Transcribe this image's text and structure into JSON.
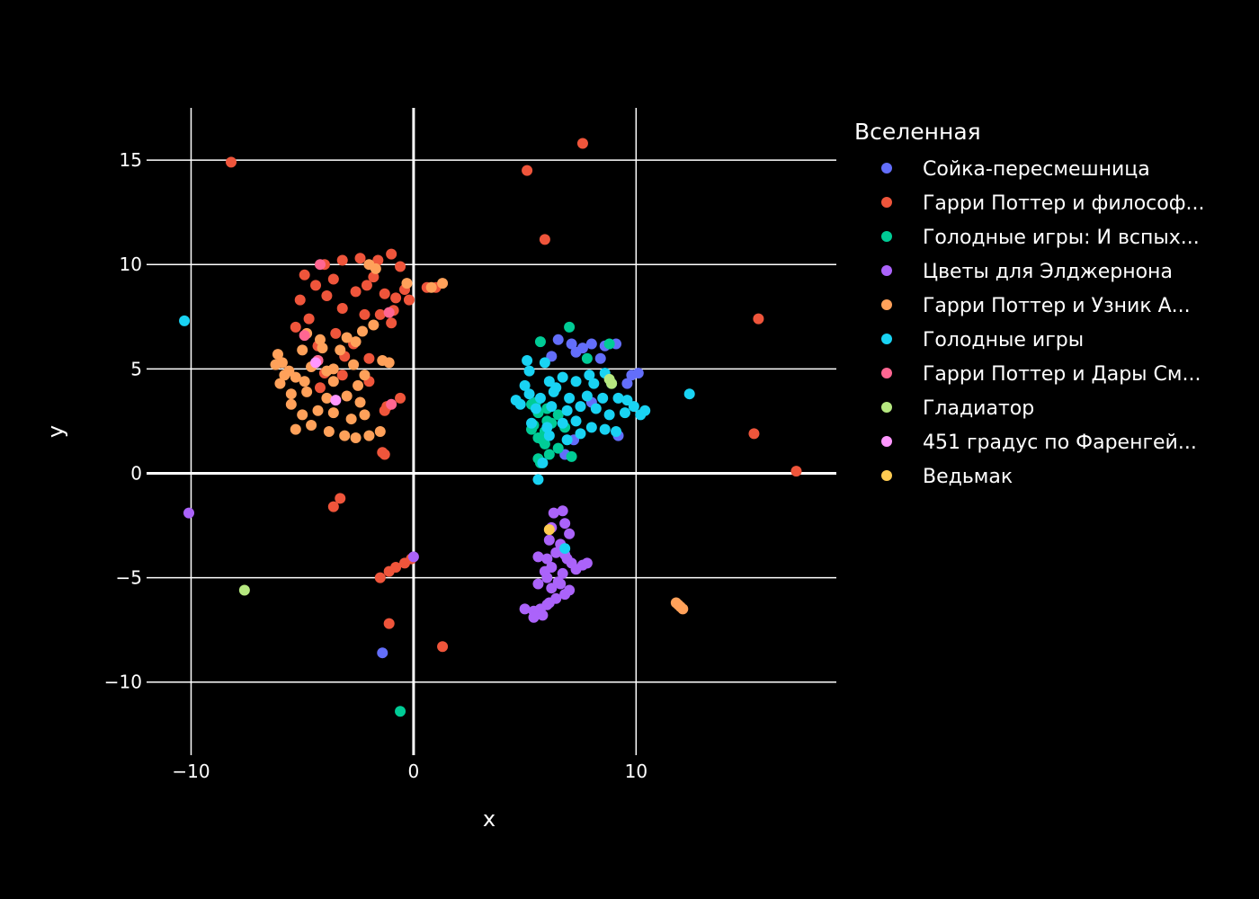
{
  "chart_data": {
    "type": "scatter",
    "title": "",
    "xlabel": "x",
    "ylabel": "y",
    "xlim": [
      -12,
      19
    ],
    "ylim": [
      -13.5,
      17.5
    ],
    "xticks": [
      -10,
      0,
      10
    ],
    "yticks": [
      -10,
      -5,
      0,
      5,
      10,
      15
    ],
    "xtick_labels": [
      "−10",
      "0",
      "10"
    ],
    "ytick_labels": [
      "−10",
      "−5",
      "0",
      "5",
      "10",
      "15"
    ],
    "grid": true,
    "background": "#000000",
    "grid_color": "#ffffff",
    "legend": {
      "title": "Вселенная",
      "placement": "right"
    },
    "series": [
      {
        "name": "Сойка-пересмешница",
        "color": "#636efa",
        "points": [
          [
            -1.4,
            -8.6
          ],
          [
            6.5,
            6.4
          ],
          [
            7.1,
            6.2
          ],
          [
            7.6,
            6.0
          ],
          [
            8.0,
            6.2
          ],
          [
            8.6,
            6.1
          ],
          [
            9.1,
            6.2
          ],
          [
            6.2,
            5.6
          ],
          [
            7.3,
            5.8
          ],
          [
            8.4,
            5.5
          ],
          [
            9.8,
            4.7
          ],
          [
            10.1,
            4.8
          ],
          [
            9.6,
            4.3
          ],
          [
            8.0,
            3.4
          ],
          [
            6.8,
            0.9
          ],
          [
            7.2,
            1.6
          ],
          [
            9.2,
            1.8
          ]
        ]
      },
      {
        "name": "Гарри Поттер и философ...",
        "color": "#ef553b",
        "points": [
          [
            -8.2,
            14.9
          ],
          [
            5.1,
            14.5
          ],
          [
            7.6,
            15.8
          ],
          [
            5.9,
            11.2
          ],
          [
            15.5,
            7.4
          ],
          [
            15.3,
            1.9
          ],
          [
            17.2,
            0.1
          ],
          [
            -4.0,
            10.0
          ],
          [
            -3.2,
            10.2
          ],
          [
            -2.4,
            10.3
          ],
          [
            -1.6,
            10.2
          ],
          [
            -1.0,
            10.5
          ],
          [
            -0.6,
            9.9
          ],
          [
            -4.9,
            9.5
          ],
          [
            -4.4,
            9.0
          ],
          [
            -5.1,
            8.3
          ],
          [
            -3.6,
            9.3
          ],
          [
            -2.1,
            9.0
          ],
          [
            -1.3,
            8.6
          ],
          [
            -0.8,
            8.4
          ],
          [
            -0.2,
            8.3
          ],
          [
            0.6,
            8.9
          ],
          [
            1.0,
            8.9
          ],
          [
            -3.2,
            7.9
          ],
          [
            -2.2,
            7.6
          ],
          [
            -1.5,
            7.6
          ],
          [
            -0.9,
            7.8
          ],
          [
            -1.0,
            7.2
          ],
          [
            -3.5,
            6.7
          ],
          [
            -2.7,
            6.2
          ],
          [
            -4.3,
            6.1
          ],
          [
            -3.1,
            5.6
          ],
          [
            -2.0,
            5.5
          ],
          [
            -4.0,
            4.8
          ],
          [
            -3.2,
            4.7
          ],
          [
            -2.0,
            4.4
          ],
          [
            -4.2,
            4.1
          ],
          [
            -1.2,
            3.2
          ],
          [
            -1.3,
            3.0
          ],
          [
            -0.6,
            3.6
          ],
          [
            -1.4,
            1.0
          ],
          [
            -1.3,
            0.9
          ],
          [
            -3.3,
            -1.2
          ],
          [
            -3.6,
            -1.6
          ],
          [
            -1.5,
            -5.0
          ],
          [
            -1.1,
            -4.7
          ],
          [
            -0.8,
            -4.5
          ],
          [
            -0.4,
            -4.3
          ],
          [
            -0.1,
            -4.1
          ],
          [
            -1.1,
            -7.2
          ],
          [
            1.3,
            -8.3
          ],
          [
            -5.3,
            7.0
          ],
          [
            -4.7,
            7.4
          ],
          [
            -3.9,
            8.5
          ],
          [
            -2.6,
            8.7
          ],
          [
            -1.8,
            9.4
          ],
          [
            -0.4,
            8.8
          ]
        ]
      },
      {
        "name": "Голодные игры: И вспых...",
        "color": "#00cc96",
        "points": [
          [
            -0.6,
            -11.4
          ],
          [
            7.0,
            7.0
          ],
          [
            5.7,
            6.3
          ],
          [
            8.8,
            6.2
          ],
          [
            7.8,
            5.5
          ],
          [
            5.3,
            3.3
          ],
          [
            5.6,
            2.9
          ],
          [
            6.0,
            2.5
          ],
          [
            5.9,
            2.0
          ],
          [
            5.6,
            1.7
          ],
          [
            5.9,
            1.4
          ],
          [
            6.1,
            0.9
          ],
          [
            5.7,
            0.5
          ],
          [
            7.1,
            0.8
          ],
          [
            6.2,
            2.4
          ],
          [
            6.5,
            2.8
          ],
          [
            5.5,
            3.4
          ],
          [
            5.4,
            2.3
          ],
          [
            5.8,
            1.6
          ],
          [
            6.5,
            1.2
          ],
          [
            6.8,
            2.2
          ],
          [
            5.3,
            2.1
          ],
          [
            6.0,
            3.1
          ],
          [
            5.6,
            0.7
          ]
        ]
      },
      {
        "name": "Цветы для Элджернона",
        "color": "#ab63fa",
        "points": [
          [
            -10.1,
            -1.9
          ],
          [
            0.0,
            -4.0
          ],
          [
            6.3,
            -1.9
          ],
          [
            6.7,
            -1.8
          ],
          [
            6.8,
            -2.4
          ],
          [
            7.0,
            -2.9
          ],
          [
            6.2,
            -2.6
          ],
          [
            6.6,
            -3.4
          ],
          [
            6.8,
            -3.9
          ],
          [
            7.1,
            -4.3
          ],
          [
            7.6,
            -4.4
          ],
          [
            7.8,
            -4.3
          ],
          [
            6.4,
            -3.8
          ],
          [
            6.0,
            -4.1
          ],
          [
            5.6,
            -4.0
          ],
          [
            6.2,
            -4.5
          ],
          [
            6.7,
            -4.8
          ],
          [
            6.0,
            -5.0
          ],
          [
            5.6,
            -5.3
          ],
          [
            6.2,
            -5.5
          ],
          [
            6.8,
            -5.8
          ],
          [
            6.4,
            -6.0
          ],
          [
            6.0,
            -6.3
          ],
          [
            5.7,
            -6.5
          ],
          [
            5.4,
            -6.6
          ],
          [
            5.0,
            -6.5
          ],
          [
            5.4,
            -6.9
          ],
          [
            5.8,
            -6.8
          ],
          [
            6.1,
            -6.2
          ],
          [
            7.0,
            -5.6
          ],
          [
            6.6,
            -5.3
          ],
          [
            6.9,
            -4.1
          ],
          [
            6.1,
            -3.2
          ],
          [
            5.9,
            -4.7
          ],
          [
            6.5,
            -5.2
          ],
          [
            7.3,
            -4.6
          ]
        ]
      },
      {
        "name": "Гарри Поттер и Узник А...",
        "color": "#ffa15a",
        "points": [
          [
            11.8,
            -6.2
          ],
          [
            11.9,
            -6.3
          ],
          [
            12.0,
            -6.4
          ],
          [
            12.1,
            -6.5
          ],
          [
            1.3,
            9.1
          ],
          [
            0.8,
            8.9
          ],
          [
            -2.0,
            10.0
          ],
          [
            -1.7,
            9.8
          ],
          [
            -0.3,
            9.1
          ],
          [
            -4.8,
            6.7
          ],
          [
            -4.2,
            6.4
          ],
          [
            -3.0,
            6.5
          ],
          [
            -2.3,
            6.8
          ],
          [
            -1.8,
            7.1
          ],
          [
            -5.0,
            5.9
          ],
          [
            -4.3,
            5.4
          ],
          [
            -3.6,
            5.0
          ],
          [
            -2.7,
            5.2
          ],
          [
            -1.4,
            5.4
          ],
          [
            -1.1,
            5.3
          ],
          [
            -6.2,
            5.2
          ],
          [
            -5.8,
            4.7
          ],
          [
            -5.3,
            4.6
          ],
          [
            -6.0,
            4.3
          ],
          [
            -4.9,
            4.4
          ],
          [
            -3.6,
            4.4
          ],
          [
            -2.5,
            4.2
          ],
          [
            -2.2,
            4.7
          ],
          [
            -5.5,
            3.8
          ],
          [
            -4.8,
            3.9
          ],
          [
            -3.9,
            3.6
          ],
          [
            -3.0,
            3.7
          ],
          [
            -2.4,
            3.4
          ],
          [
            -5.5,
            3.3
          ],
          [
            -5.0,
            2.8
          ],
          [
            -4.3,
            3.0
          ],
          [
            -3.6,
            2.9
          ],
          [
            -2.8,
            2.6
          ],
          [
            -2.2,
            2.8
          ],
          [
            -5.3,
            2.1
          ],
          [
            -4.6,
            2.3
          ],
          [
            -3.8,
            2.0
          ],
          [
            -3.1,
            1.8
          ],
          [
            -2.6,
            1.7
          ],
          [
            -2.0,
            1.8
          ],
          [
            -1.5,
            2.0
          ],
          [
            -5.9,
            5.3
          ],
          [
            -6.1,
            5.7
          ],
          [
            -4.1,
            6.0
          ],
          [
            -3.3,
            5.9
          ],
          [
            -2.6,
            6.3
          ],
          [
            -5.6,
            4.9
          ],
          [
            -4.6,
            5.1
          ],
          [
            -3.9,
            4.9
          ]
        ]
      },
      {
        "name": "Голодные игры",
        "color": "#19d3f3",
        "points": [
          [
            -10.3,
            7.3
          ],
          [
            12.4,
            3.8
          ],
          [
            6.8,
            -3.6
          ],
          [
            5.1,
            5.4
          ],
          [
            5.2,
            4.9
          ],
          [
            5.9,
            5.3
          ],
          [
            6.1,
            4.4
          ],
          [
            6.7,
            4.6
          ],
          [
            7.3,
            4.4
          ],
          [
            8.1,
            4.3
          ],
          [
            8.9,
            4.3
          ],
          [
            5.2,
            3.8
          ],
          [
            5.7,
            3.6
          ],
          [
            6.3,
            3.9
          ],
          [
            7.0,
            3.6
          ],
          [
            7.8,
            3.7
          ],
          [
            8.5,
            3.6
          ],
          [
            9.2,
            3.6
          ],
          [
            9.9,
            3.2
          ],
          [
            10.4,
            3.0
          ],
          [
            4.8,
            3.3
          ],
          [
            5.5,
            3.1
          ],
          [
            6.2,
            3.2
          ],
          [
            6.9,
            3.0
          ],
          [
            7.5,
            3.2
          ],
          [
            8.2,
            3.1
          ],
          [
            8.8,
            2.8
          ],
          [
            9.5,
            2.9
          ],
          [
            10.2,
            2.8
          ],
          [
            5.3,
            2.4
          ],
          [
            6.0,
            2.2
          ],
          [
            6.7,
            2.4
          ],
          [
            7.3,
            2.5
          ],
          [
            8.0,
            2.2
          ],
          [
            8.6,
            2.1
          ],
          [
            9.1,
            2.0
          ],
          [
            6.1,
            1.8
          ],
          [
            6.9,
            1.6
          ],
          [
            7.5,
            1.9
          ],
          [
            5.8,
            0.5
          ],
          [
            5.6,
            -0.3
          ],
          [
            4.6,
            3.5
          ],
          [
            7.9,
            4.7
          ],
          [
            8.6,
            4.8
          ],
          [
            6.4,
            4.1
          ],
          [
            5.0,
            4.2
          ],
          [
            9.6,
            3.5
          ]
        ]
      },
      {
        "name": "Гарри Поттер и Дары См...",
        "color": "#ff6692",
        "points": [
          [
            -4.2,
            10.0
          ],
          [
            -4.9,
            6.6
          ],
          [
            -4.3,
            5.4
          ],
          [
            -1.0,
            3.3
          ],
          [
            -1.1,
            7.7
          ]
        ]
      },
      {
        "name": "Гладиатор",
        "color": "#b6e880",
        "points": [
          [
            -7.6,
            -5.6
          ],
          [
            8.8,
            4.5
          ],
          [
            8.9,
            4.3
          ]
        ]
      },
      {
        "name": "451 градус по Фаренгей...",
        "color": "#ff97ff",
        "points": [
          [
            -3.5,
            3.5
          ],
          [
            -4.4,
            5.3
          ]
        ]
      },
      {
        "name": "Ведьмак",
        "color": "#fecb52",
        "points": [
          [
            6.1,
            -2.7
          ]
        ]
      }
    ]
  }
}
